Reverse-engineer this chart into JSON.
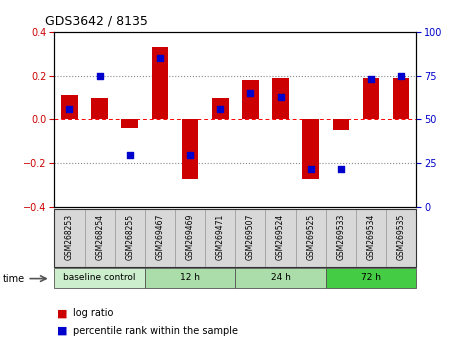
{
  "title": "GDS3642 / 8135",
  "samples": [
    "GSM268253",
    "GSM268254",
    "GSM268255",
    "GSM269467",
    "GSM269469",
    "GSM269471",
    "GSM269507",
    "GSM269524",
    "GSM269525",
    "GSM269533",
    "GSM269534",
    "GSM269535"
  ],
  "log_ratio": [
    0.11,
    0.1,
    -0.04,
    0.33,
    -0.27,
    0.1,
    0.18,
    0.19,
    -0.27,
    -0.05,
    0.19,
    0.19
  ],
  "percentile_rank": [
    56,
    75,
    30,
    85,
    30,
    56,
    65,
    63,
    22,
    22,
    73,
    75
  ],
  "bar_color": "#cc0000",
  "dot_color": "#0000cc",
  "ylim_left": [
    -0.4,
    0.4
  ],
  "ylim_right": [
    0,
    100
  ],
  "yticks_left": [
    -0.4,
    -0.2,
    0.0,
    0.2,
    0.4
  ],
  "yticks_right": [
    0,
    25,
    50,
    75,
    100
  ],
  "dotted_lines": [
    -0.2,
    0.0,
    0.2
  ],
  "groups": [
    {
      "label": "baseline control",
      "start": 0,
      "end": 3
    },
    {
      "label": "12 h",
      "start": 3,
      "end": 6
    },
    {
      "label": "24 h",
      "start": 6,
      "end": 9
    },
    {
      "label": "72 h",
      "start": 9,
      "end": 12
    }
  ],
  "group_colors": [
    "#cceecc",
    "#aaddaa",
    "#aaddaa",
    "#44cc44"
  ],
  "legend_log_ratio": "log ratio",
  "legend_percentile": "percentile rank within the sample",
  "time_label": "time",
  "label_bg": "#d8d8d8",
  "label_border": "#999999"
}
